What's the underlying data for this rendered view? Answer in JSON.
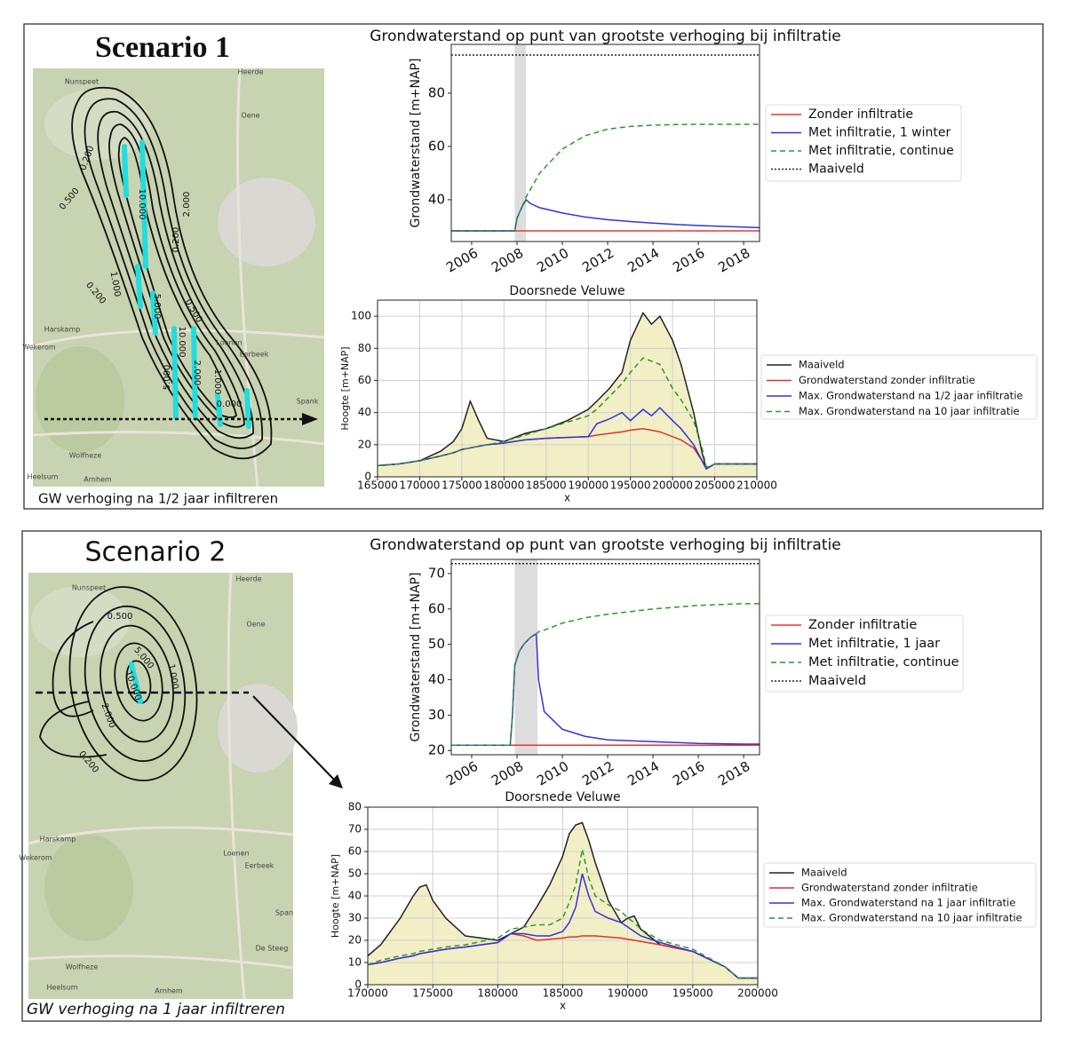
{
  "panels": [
    {
      "title": "Scenario 1",
      "caption": "GW verhoging na 1/2 jaar infiltreren",
      "map_labels": [
        "Nunspeet",
        "Heerde",
        "Oene",
        "Harskamp",
        "Wekerom",
        "Loenen",
        "Eerbeek",
        "Wolfheze",
        "Arnhem",
        "Heelsum",
        "Spank",
        "0.200",
        "0.500",
        "0.200",
        "10.000",
        "2.000",
        "1.000",
        "0.200",
        "5.000",
        "10.000",
        "0.500",
        "5.000",
        "2.000",
        "0.000",
        "1.000"
      ]
    },
    {
      "title": "Scenario 2",
      "caption": "GW verhoging na 1 jaar infiltreren",
      "map_labels": [
        "Nunspeet",
        "Heerde",
        "Oene",
        "Harskamp",
        "Wekerom",
        "Loenen",
        "Eerbeek",
        "Wolfheze",
        "Arnhem",
        "Heelsum",
        "Span",
        "De Steeg",
        "0.500",
        "5.000",
        "10.000",
        "2.000",
        "1.000",
        "0.200"
      ]
    }
  ],
  "chart_data": [
    {
      "type": "line",
      "title": "Grondwaterstand op punt van grootste verhoging bij infiltratie",
      "y_label": "Grondwaterstand [m+NAP]",
      "x": [
        2005.1,
        2007,
        2007.9,
        2008.0,
        2008.2,
        2008.4,
        2008.6,
        2009,
        2010,
        2011,
        2012,
        2013,
        2014,
        2015,
        2016,
        2017,
        2018,
        2018.7
      ],
      "xlim": [
        2005.1,
        2018.7
      ],
      "xticks": [
        2006,
        2008,
        2010,
        2012,
        2014,
        2016,
        2018
      ],
      "ylim": [
        24.3,
        98.3
      ],
      "yticks": [
        40,
        60,
        80
      ],
      "grid": false,
      "shaded_span": [
        2007.9,
        2008.4
      ],
      "shade_color": "#dddddd",
      "series": [
        {
          "name": "Zonder infiltratie",
          "color": "#ee3333",
          "style": "solid",
          "values": [
            28.3,
            28.3,
            28.3,
            28.3,
            28.3,
            28.3,
            28.3,
            28.3,
            28.3,
            28.3,
            28.3,
            28.3,
            28.3,
            28.3,
            28.3,
            28.3,
            28.3,
            28.3
          ]
        },
        {
          "name": "Met infiltratie, 1 winter",
          "color": "#3333dd",
          "style": "solid",
          "values": [
            28.3,
            28.3,
            28.3,
            33,
            37,
            40,
            38.5,
            37,
            35,
            33.5,
            32.5,
            31.8,
            31.2,
            30.7,
            30.3,
            30,
            29.7,
            29.5
          ]
        },
        {
          "name": "Met infiltratie, continue",
          "color": "#2a9a2a",
          "style": "dashed",
          "values": [
            28.3,
            28.3,
            28.3,
            33,
            37,
            41,
            44,
            50,
            59,
            64,
            66.5,
            67.5,
            68,
            68.2,
            68.3,
            68.3,
            68.3,
            68.3
          ]
        },
        {
          "name": "Maaiveld",
          "color": "#222222",
          "style": "dotted",
          "values": [
            94.3,
            94.3,
            94.3,
            94.3,
            94.3,
            94.3,
            94.3,
            94.3,
            94.3,
            94.3,
            94.3,
            94.3,
            94.3,
            94.3,
            94.3,
            94.3,
            94.3,
            94.3
          ]
        }
      ]
    },
    {
      "type": "line",
      "title": "Doorsnede Veluwe",
      "x_label": "x",
      "y_label": "Hoogte [m+NAP]",
      "x": [
        165000,
        167500,
        170000,
        172500,
        174000,
        175000,
        176000,
        177000,
        178000,
        180000,
        182500,
        185000,
        187500,
        190000,
        191000,
        192500,
        194000,
        195000,
        196500,
        197500,
        198500,
        200000,
        201000,
        202500,
        203500,
        204000,
        205000,
        207500,
        210000
      ],
      "xlim": [
        165000,
        210000
      ],
      "xticks": [
        165000,
        170000,
        175000,
        180000,
        185000,
        190000,
        195000,
        200000,
        205000,
        210000
      ],
      "ylim": [
        0,
        110
      ],
      "yticks": [
        0,
        20,
        40,
        60,
        80,
        100
      ],
      "grid": true,
      "series": [
        {
          "name": "Maaiveld",
          "color": "#222222",
          "style": "solid",
          "fill": "#f2efc6",
          "values": [
            7,
            8,
            10,
            16,
            22,
            30,
            47,
            35,
            24,
            22,
            27,
            30,
            35,
            42,
            47,
            55,
            65,
            85,
            102,
            95,
            100,
            85,
            70,
            40,
            15,
            5,
            8,
            8,
            8
          ]
        },
        {
          "name": "Grondwaterstand zonder infiltratie",
          "color": "#dd3333",
          "style": "solid",
          "values": [
            7,
            8,
            10,
            13,
            15,
            17,
            18,
            19,
            20,
            21,
            23,
            24,
            24.5,
            25,
            26,
            27,
            28,
            29,
            30,
            29,
            28,
            25,
            23,
            18,
            10,
            5,
            8,
            8,
            8
          ]
        },
        {
          "name": "Max. Grondwaterstand na 1/2 jaar infiltratie",
          "color": "#3333dd",
          "style": "solid",
          "values": [
            7,
            8,
            10,
            13,
            15,
            17,
            18,
            19,
            20,
            21,
            23,
            24,
            24.5,
            25,
            33,
            36,
            40,
            35,
            42,
            38,
            43,
            35,
            30,
            20,
            10,
            5,
            8,
            8,
            8
          ]
        },
        {
          "name": "Max. Grondwaterstand na 10 jaar infiltratie",
          "color": "#2a9a2a",
          "style": "dashed",
          "values": [
            7,
            8,
            10,
            13,
            15,
            17,
            18,
            19,
            20,
            22,
            26,
            30,
            34,
            38,
            42,
            50,
            58,
            65,
            74,
            72,
            70,
            55,
            48,
            35,
            18,
            6,
            8,
            8,
            8
          ]
        }
      ]
    },
    {
      "type": "line",
      "title": "Grondwaterstand op punt van grootste verhoging bij infiltratie",
      "y_label": "Grondwaterstand [m+NAP]",
      "x": [
        2005.1,
        2007.7,
        2007.8,
        2007.9,
        2008.1,
        2008.3,
        2008.6,
        2008.85,
        2008.95,
        2009.2,
        2010,
        2011,
        2012,
        2014,
        2016,
        2018,
        2018.7
      ],
      "xlim": [
        2005.1,
        2018.7
      ],
      "xticks": [
        2006,
        2008,
        2010,
        2012,
        2014,
        2016,
        2018
      ],
      "ylim": [
        18.8,
        74
      ],
      "yticks": [
        20,
        30,
        40,
        50,
        60,
        70
      ],
      "grid": false,
      "shaded_span": [
        2007.9,
        2008.9
      ],
      "shade_color": "#dddddd",
      "series": [
        {
          "name": "Zonder infiltratie",
          "color": "#ee3333",
          "style": "solid",
          "values": [
            21.5,
            21.5,
            21.5,
            21.5,
            21.5,
            21.5,
            21.5,
            21.5,
            21.5,
            21.5,
            21.5,
            21.5,
            21.5,
            21.5,
            21.5,
            21.5,
            21.5
          ]
        },
        {
          "name": "Met infiltratie, 1 jaar",
          "color": "#3333dd",
          "style": "solid",
          "values": [
            21.5,
            21.5,
            30,
            44,
            48,
            50,
            52,
            53,
            40,
            31,
            26,
            24,
            23,
            22.5,
            22,
            21.8,
            21.8
          ]
        },
        {
          "name": "Met infiltratie, continue",
          "color": "#2a9a2a",
          "style": "dashed",
          "values": [
            21.5,
            21.5,
            30,
            44,
            48,
            50,
            52,
            53,
            53.5,
            54,
            56,
            57.5,
            58.5,
            60,
            61,
            61.5,
            61.5
          ]
        },
        {
          "name": "Maaiveld",
          "color": "#222222",
          "style": "dotted",
          "values": [
            72.8,
            72.8,
            72.8,
            72.8,
            72.8,
            72.8,
            72.8,
            72.8,
            72.8,
            72.8,
            72.8,
            72.8,
            72.8,
            72.8,
            72.8,
            72.8,
            72.8
          ]
        }
      ]
    },
    {
      "type": "line",
      "title": "Doorsnede Veluwe",
      "x_label": "x",
      "y_label": "Hoogte [m+NAP]",
      "x": [
        170000,
        171000,
        172500,
        173500,
        174000,
        174500,
        175000,
        176000,
        177500,
        180000,
        181000,
        182000,
        183000,
        184000,
        185000,
        185500,
        186000,
        186500,
        187000,
        187500,
        188500,
        189500,
        190000,
        190500,
        191000,
        192500,
        195000,
        197500,
        198500,
        200000
      ],
      "xlim": [
        170000,
        200000
      ],
      "xticks": [
        170000,
        175000,
        180000,
        185000,
        190000,
        195000,
        200000
      ],
      "ylim": [
        0,
        80
      ],
      "yticks": [
        0,
        10,
        20,
        30,
        40,
        50,
        60,
        70,
        80
      ],
      "grid": true,
      "series": [
        {
          "name": "Maaiveld",
          "color": "#222222",
          "style": "solid",
          "fill": "#f2efc6",
          "values": [
            13,
            18,
            30,
            40,
            44,
            45,
            38,
            30,
            22,
            20,
            23,
            26,
            35,
            45,
            58,
            68,
            72,
            73,
            65,
            55,
            38,
            28,
            30,
            31,
            25,
            18,
            15,
            8,
            3,
            3
          ]
        },
        {
          "name": "Grondwaterstand zonder infiltratie",
          "color": "#dd3333",
          "style": "solid",
          "values": [
            9,
            10,
            12,
            13,
            14,
            14.5,
            15,
            16,
            17,
            19,
            23,
            22,
            20,
            20.5,
            21,
            21.5,
            21.5,
            22,
            22,
            22,
            21.5,
            21,
            20.5,
            20,
            19.5,
            18,
            15,
            8,
            3,
            3
          ]
        },
        {
          "name": "Max. Grondwaterstand na 1 jaar infiltratie",
          "color": "#3333dd",
          "style": "solid",
          "values": [
            9,
            10,
            12,
            13,
            14,
            14.5,
            15,
            16,
            17,
            19,
            23,
            23,
            22,
            22,
            24,
            28,
            35,
            50,
            40,
            33,
            30,
            28,
            26,
            24,
            22,
            19,
            15,
            8,
            3,
            3
          ]
        },
        {
          "name": "Max. Grondwaterstand na 10 jaar infiltratie",
          "color": "#2a9a2a",
          "style": "dashed",
          "values": [
            9,
            11,
            13,
            14,
            15,
            15.5,
            16,
            17,
            18,
            21,
            25,
            26,
            27,
            27,
            30,
            37,
            45,
            61,
            48,
            40,
            36,
            33,
            30,
            28,
            25,
            20,
            16,
            8,
            3,
            3
          ]
        }
      ]
    }
  ]
}
